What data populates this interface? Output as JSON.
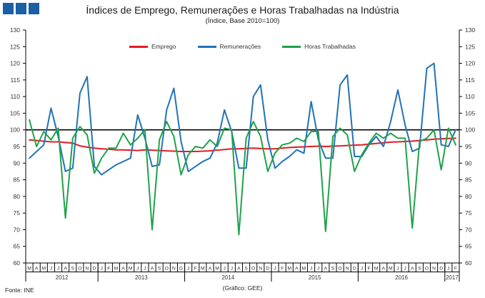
{
  "header": {
    "title": "Índices de Emprego, Remunerações e Horas Trabalhadas na Indústria",
    "subtitle": "(Índice, Base 2010=100)"
  },
  "logo": {
    "color": "#1b5fa5",
    "squares": 3
  },
  "legend": [
    {
      "label": "Emprego",
      "color": "#e41b23"
    },
    {
      "label": "Remunerações",
      "color": "#2173b6"
    },
    {
      "label": "Horas Trabalhadas",
      "color": "#1fa24a"
    }
  ],
  "chart_data": {
    "type": "line",
    "title": "Índices de Emprego, Remunerações e Horas Trabalhadas na Indústria",
    "subtitle": "(Índice, Base 2010=100)",
    "ylim": [
      60,
      130
    ],
    "ytick_step": 5,
    "reference_line": 100,
    "grid": false,
    "legend_position": "top",
    "axis_color": "#000000",
    "reference_line_color": "#000000",
    "x_months": [
      "M",
      "A",
      "M",
      "J",
      "J",
      "A",
      "S",
      "O",
      "N",
      "D",
      "J",
      "F",
      "M",
      "A",
      "M",
      "J",
      "J",
      "A",
      "S",
      "O",
      "N",
      "D",
      "J",
      "F",
      "M",
      "A",
      "M",
      "J",
      "J",
      "A",
      "S",
      "O",
      "N",
      "D",
      "J",
      "F",
      "M",
      "A",
      "M",
      "J",
      "J",
      "A",
      "S",
      "O",
      "N",
      "D",
      "J",
      "F",
      "M",
      "A",
      "M",
      "J",
      "J",
      "A",
      "S",
      "O",
      "N",
      "D",
      "J",
      "F"
    ],
    "year_groups": [
      {
        "label": "2012",
        "months": 10
      },
      {
        "label": "2013",
        "months": 12
      },
      {
        "label": "2014",
        "months": 12
      },
      {
        "label": "2015",
        "months": 12
      },
      {
        "label": "2016",
        "months": 12
      },
      {
        "label": "2017",
        "months": 2
      }
    ],
    "series": [
      {
        "name": "Emprego",
        "color": "#e41b23",
        "values": [
          97.0,
          96.8,
          96.6,
          96.4,
          96.4,
          96.2,
          96.0,
          95.2,
          94.8,
          94.5,
          94.3,
          94.2,
          94.0,
          94.0,
          93.9,
          93.8,
          94.0,
          93.9,
          93.8,
          93.7,
          93.6,
          93.5,
          93.5,
          93.5,
          93.6,
          93.7,
          93.9,
          94.1,
          94.3,
          94.3,
          94.4,
          94.5,
          94.4,
          94.3,
          94.3,
          94.5,
          94.7,
          94.8,
          94.9,
          95.0,
          95.1,
          95.0,
          95.1,
          95.2,
          95.3,
          95.4,
          95.5,
          95.7,
          95.9,
          96.1,
          96.3,
          96.4,
          96.5,
          96.6,
          96.8,
          97.0,
          97.2,
          97.3,
          97.4,
          97.5
        ]
      },
      {
        "name": "Remunerações",
        "color": "#2173b6",
        "values": [
          91.5,
          93.5,
          95.5,
          106.5,
          98.0,
          87.5,
          88.5,
          111.0,
          116.0,
          89.0,
          86.5,
          88.0,
          89.5,
          90.5,
          91.5,
          104.5,
          97.5,
          89.0,
          89.5,
          106.0,
          112.5,
          96.5,
          87.5,
          89.0,
          90.5,
          91.5,
          96.0,
          106.0,
          99.5,
          88.5,
          88.5,
          110.0,
          113.5,
          97.0,
          88.5,
          90.5,
          92.0,
          94.0,
          93.0,
          108.5,
          97.0,
          91.5,
          91.5,
          113.5,
          116.5,
          92.0,
          92.0,
          95.5,
          98.0,
          95.0,
          102.5,
          112.0,
          101.5,
          93.5,
          94.5,
          118.5,
          120.0,
          95.5,
          95.0,
          100.0
        ]
      },
      {
        "name": "Horas Trabalhadas",
        "color": "#1fa24a",
        "values": [
          103.0,
          95.0,
          99.5,
          97.0,
          100.5,
          73.5,
          97.5,
          101.0,
          98.5,
          87.0,
          91.5,
          94.5,
          94.5,
          99.0,
          95.5,
          97.5,
          100.0,
          70.0,
          97.0,
          102.5,
          98.0,
          86.5,
          92.5,
          95.0,
          94.5,
          97.0,
          95.0,
          100.5,
          100.0,
          68.5,
          97.5,
          102.5,
          98.0,
          87.5,
          93.0,
          95.5,
          96.0,
          97.5,
          96.5,
          99.5,
          99.5,
          69.5,
          98.0,
          100.5,
          98.5,
          87.5,
          92.5,
          96.0,
          99.0,
          97.5,
          99.0,
          97.5,
          97.5,
          70.5,
          96.5,
          97.5,
          100.0,
          88.0,
          100.5,
          95.5
        ]
      }
    ]
  },
  "footer": {
    "source": "Fonte: INE",
    "credit": "(Gráfico: GEE)"
  }
}
